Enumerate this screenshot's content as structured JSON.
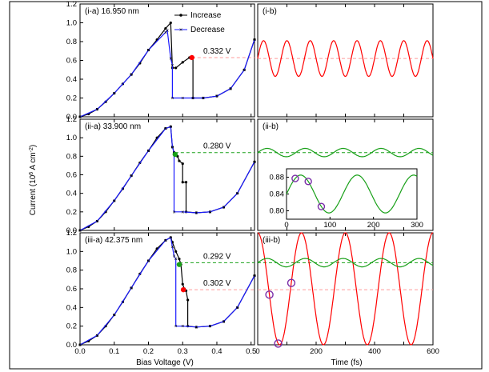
{
  "figure": {
    "ylabel": "Current (10",
    "ylabel_sup": "6",
    "ylabel_tail": " A cm",
    "ylabel_sup2": "-2",
    "ylabel_close": ")",
    "xlabel_left": "Bias Voltage (V)",
    "xlabel_right": "Time (fs)",
    "legend_increase": "Increase",
    "legend_decrease": "Decrease"
  },
  "colors": {
    "increase": "#000000",
    "decrease": "#1a1aff",
    "red": "#ff0000",
    "green": "#18a018",
    "red_dash": "#ff9a9a",
    "green_dash": "#18a018",
    "marker_ring": "#7a2ca8"
  },
  "chart_data": [
    {
      "id": "i-a",
      "type": "line",
      "title": "(i-a) 16.950 nm",
      "xlim": [
        0.0,
        0.51
      ],
      "ylim": [
        0.0,
        1.2
      ],
      "yticks": [
        "0.0",
        "0.2",
        "0.4",
        "0.6",
        "0.8",
        "1.0",
        "1.2"
      ],
      "xticks": [
        "0.0",
        "0.1",
        "0.2",
        "0.3",
        "0.4",
        "0.5"
      ],
      "xticks_shown": false,
      "series": [
        {
          "name": "Increase",
          "x": [
            0.0,
            0.025,
            0.05,
            0.075,
            0.1,
            0.125,
            0.15,
            0.175,
            0.2,
            0.225,
            0.25,
            0.265,
            0.27,
            0.28,
            0.3,
            0.32,
            0.325,
            0.33,
            0.33,
            0.36,
            0.4,
            0.44,
            0.48,
            0.51
          ],
          "y": [
            0.0,
            0.03,
            0.08,
            0.16,
            0.25,
            0.35,
            0.45,
            0.57,
            0.71,
            0.82,
            0.94,
            1.0,
            0.52,
            0.52,
            0.58,
            0.63,
            0.63,
            0.63,
            0.2,
            0.2,
            0.22,
            0.3,
            0.5,
            0.82
          ]
        },
        {
          "name": "Decrease",
          "x": [
            0.0,
            0.05,
            0.1,
            0.15,
            0.2,
            0.25,
            0.255,
            0.265,
            0.27,
            0.27,
            0.3,
            0.33,
            0.36,
            0.4,
            0.44,
            0.48,
            0.51
          ],
          "y": [
            0.0,
            0.08,
            0.25,
            0.45,
            0.71,
            0.9,
            0.92,
            0.62,
            0.55,
            0.2,
            0.2,
            0.2,
            0.2,
            0.22,
            0.3,
            0.5,
            0.82
          ]
        }
      ],
      "highlight": {
        "x": 0.327,
        "y": 0.63,
        "color": "red"
      },
      "annotation": {
        "text": "0.332 V",
        "y": 0.63,
        "color": "red"
      }
    },
    {
      "id": "i-b",
      "type": "line",
      "title": "(i-b)",
      "xlim": [
        0,
        600
      ],
      "ylim": [
        0.0,
        1.2
      ],
      "series": [
        {
          "name": "",
          "color": "red",
          "mean": 0.62,
          "amplitude": 0.19,
          "period": 80,
          "phase": 0.0
        }
      ],
      "dashed_level": {
        "y": 0.62,
        "color": "red_dash"
      }
    },
    {
      "id": "ii-a",
      "type": "line",
      "title": "(ii-a) 33.900 nm",
      "xlim": [
        0.0,
        0.51
      ],
      "ylim": [
        0.0,
        1.2
      ],
      "yticks": [
        "0.0",
        "0.2",
        "0.4",
        "0.6",
        "0.8",
        "1.0",
        "1.2"
      ],
      "xticks_shown": false,
      "series": [
        {
          "name": "Increase",
          "x": [
            0.0,
            0.025,
            0.05,
            0.075,
            0.1,
            0.125,
            0.15,
            0.175,
            0.2,
            0.225,
            0.25,
            0.265,
            0.27,
            0.275,
            0.285,
            0.29,
            0.3,
            0.3,
            0.31,
            0.31,
            0.34,
            0.38,
            0.42,
            0.46,
            0.51
          ],
          "y": [
            0.0,
            0.04,
            0.1,
            0.2,
            0.32,
            0.45,
            0.59,
            0.73,
            0.86,
            1.0,
            1.1,
            1.12,
            0.9,
            0.84,
            0.8,
            0.75,
            0.72,
            0.52,
            0.52,
            0.2,
            0.19,
            0.2,
            0.25,
            0.4,
            0.74
          ]
        },
        {
          "name": "Decrease",
          "x": [
            0.0,
            0.05,
            0.1,
            0.15,
            0.2,
            0.25,
            0.265,
            0.27,
            0.275,
            0.275,
            0.3,
            0.34,
            0.38,
            0.42,
            0.46,
            0.51
          ],
          "y": [
            0.0,
            0.1,
            0.32,
            0.59,
            0.86,
            1.1,
            1.12,
            0.9,
            0.84,
            0.2,
            0.2,
            0.19,
            0.2,
            0.25,
            0.4,
            0.74
          ]
        }
      ],
      "highlight": {
        "x": 0.278,
        "y": 0.82,
        "color": "green"
      },
      "annotation": {
        "text": "0.280 V",
        "y": 0.84,
        "color": "green"
      }
    },
    {
      "id": "ii-b",
      "type": "line",
      "title": "(ii-b)",
      "xlim": [
        0,
        600
      ],
      "ylim": [
        0.0,
        1.2
      ],
      "series": [
        {
          "name": "",
          "color": "green",
          "mean": 0.84,
          "amplitude": 0.045,
          "period": 130,
          "phase": 0.0
        }
      ],
      "dashed_level": {
        "y": 0.84,
        "color": "green_dash"
      },
      "inset": {
        "xlim": [
          0,
          300
        ],
        "ylim": [
          0.78,
          0.9
        ],
        "xticks": [
          "0",
          "100",
          "200",
          "300"
        ],
        "yticks": [
          "0.80",
          "0.84",
          "0.88"
        ],
        "series": {
          "mean": 0.84,
          "amplitude": 0.045,
          "period": 130,
          "phase": 0.0
        },
        "markers_x": [
          20,
          50,
          80
        ]
      }
    },
    {
      "id": "iii-a",
      "type": "line",
      "title": "(iii-a) 42.375 nm",
      "xlim": [
        0.0,
        0.51
      ],
      "ylim": [
        0.0,
        1.2
      ],
      "yticks": [
        "0.0",
        "0.2",
        "0.4",
        "0.6",
        "0.8",
        "1.0",
        "1.2"
      ],
      "xticks": [
        "0.0",
        "0.1",
        "0.2",
        "0.3",
        "0.4",
        "0.5"
      ],
      "series": [
        {
          "name": "Increase",
          "x": [
            0.0,
            0.025,
            0.05,
            0.075,
            0.1,
            0.125,
            0.15,
            0.175,
            0.2,
            0.225,
            0.25,
            0.265,
            0.27,
            0.28,
            0.29,
            0.295,
            0.3,
            0.305,
            0.31,
            0.315,
            0.315,
            0.34,
            0.38,
            0.42,
            0.46,
            0.51
          ],
          "y": [
            0.0,
            0.04,
            0.1,
            0.2,
            0.32,
            0.46,
            0.61,
            0.76,
            0.9,
            1.03,
            1.12,
            1.15,
            1.1,
            1.0,
            0.92,
            0.86,
            0.65,
            0.6,
            0.58,
            0.48,
            0.2,
            0.19,
            0.2,
            0.25,
            0.4,
            0.74
          ]
        },
        {
          "name": "Decrease",
          "x": [
            0.0,
            0.05,
            0.1,
            0.15,
            0.2,
            0.25,
            0.265,
            0.27,
            0.275,
            0.28,
            0.28,
            0.3,
            0.34,
            0.38,
            0.42,
            0.46,
            0.51
          ],
          "y": [
            0.0,
            0.1,
            0.32,
            0.61,
            0.9,
            1.12,
            1.15,
            1.05,
            0.95,
            0.92,
            0.2,
            0.2,
            0.19,
            0.2,
            0.25,
            0.4,
            0.74
          ]
        }
      ],
      "highlights": [
        {
          "x": 0.29,
          "y": 0.86,
          "color": "green"
        },
        {
          "x": 0.302,
          "y": 0.59,
          "color": "red"
        }
      ],
      "annotations": [
        {
          "text": "0.292 V",
          "y": 0.88,
          "color": "green"
        },
        {
          "text": "0.302 V",
          "y": 0.59,
          "color": "red"
        }
      ]
    },
    {
      "id": "iii-b",
      "type": "line",
      "title": "(iii-b)",
      "xticks": [
        "0",
        "200",
        "400",
        "600"
      ],
      "xlim": [
        0,
        600
      ],
      "ylim": [
        0.0,
        1.2
      ],
      "series": [
        {
          "name": "",
          "color": "red",
          "mean": 0.6,
          "amplitude": 0.6,
          "period": 150,
          "phase": 0.25
        },
        {
          "name": "",
          "color": "green",
          "mean": 0.88,
          "amplitude": 0.045,
          "period": 130,
          "phase": 0.0
        }
      ],
      "dashed_levels": [
        {
          "y": 0.88,
          "color": "green_dash"
        },
        {
          "y": 0.59,
          "color": "red_dash"
        }
      ],
      "markers_x": [
        40,
        70,
        115
      ]
    }
  ]
}
